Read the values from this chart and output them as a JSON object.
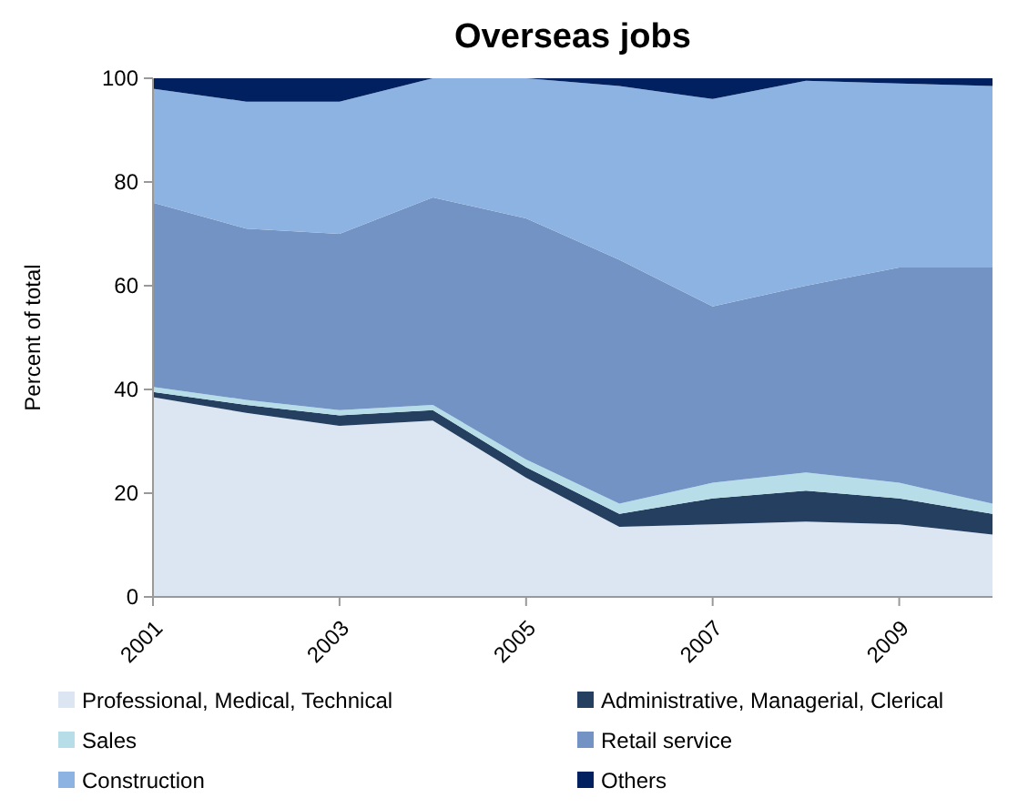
{
  "chart_data": {
    "type": "area",
    "stacked": true,
    "title": "Overseas jobs",
    "ylabel": "Percent of total",
    "x": [
      2001,
      2002,
      2003,
      2004,
      2005,
      2006,
      2007,
      2008,
      2009,
      2010
    ],
    "xlim": [
      2001,
      2010
    ],
    "xticks": [
      2001,
      2003,
      2005,
      2007,
      2009
    ],
    "ylim": [
      0,
      100
    ],
    "yticks": [
      0,
      20,
      40,
      60,
      80,
      100
    ],
    "grid": false,
    "legend": "bottom",
    "series": [
      {
        "name": "Professional, Medical, Technical",
        "color": "#dce6f2",
        "values": [
          38.5,
          35.5,
          33,
          34,
          23,
          13.5,
          14,
          14.5,
          14,
          12
        ]
      },
      {
        "name": "Administrative, Managerial, Clerical",
        "color": "#243f60",
        "values": [
          1,
          1.5,
          2,
          2,
          2,
          2.5,
          5,
          6,
          5,
          4
        ]
      },
      {
        "name": "Sales",
        "color": "#b7dee8",
        "values": [
          1,
          1,
          1,
          1,
          1.5,
          2,
          3,
          3.5,
          3,
          2
        ]
      },
      {
        "name": "Retail service",
        "color": "#7393c4",
        "values": [
          35.5,
          33,
          34,
          40,
          46.5,
          47,
          34,
          36,
          41.5,
          45.5
        ]
      },
      {
        "name": "Construction",
        "color": "#8db3e2",
        "values": [
          22,
          24.5,
          25.5,
          23,
          27,
          33.5,
          40,
          39.5,
          35.5,
          35
        ]
      },
      {
        "name": "Others",
        "color": "#002060",
        "values": [
          2,
          4.5,
          4.5,
          0,
          0,
          1.5,
          4,
          0.5,
          1,
          1.5
        ]
      }
    ]
  }
}
